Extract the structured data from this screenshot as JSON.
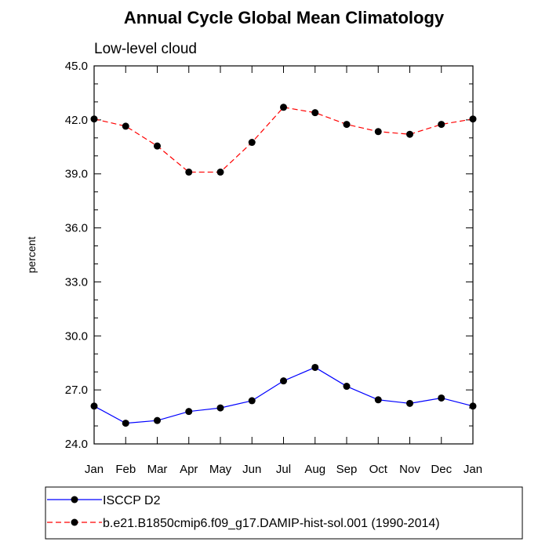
{
  "chart_data": {
    "type": "line",
    "title": "Annual Cycle Global Mean Climatology",
    "subtitle": "Low-level cloud",
    "xlabel": "",
    "ylabel": "percent",
    "categories": [
      "Jan",
      "Feb",
      "Mar",
      "Apr",
      "May",
      "Jun",
      "Jul",
      "Aug",
      "Sep",
      "Oct",
      "Nov",
      "Dec",
      "Jan"
    ],
    "ylim": [
      24.0,
      45.0
    ],
    "yticks": [
      "24.0",
      "27.0",
      "30.0",
      "33.0",
      "36.0",
      "39.0",
      "42.0",
      "45.0"
    ],
    "grid": false,
    "legend_position": "bottom",
    "series": [
      {
        "name": "ISCCP D2",
        "color": "#0000ff",
        "line_style": "solid",
        "marker": "filled-circle",
        "values": [
          26.1,
          25.15,
          25.3,
          25.8,
          26.0,
          26.4,
          27.5,
          28.25,
          27.2,
          26.45,
          26.25,
          26.55,
          26.1
        ]
      },
      {
        "name": "b.e21.B1850cmip6.f09_g17.DAMIP-hist-sol.001 (1990-2014)",
        "color": "#ff0000",
        "line_style": "dashed",
        "marker": "filled-circle",
        "values": [
          42.05,
          41.65,
          40.55,
          39.1,
          39.1,
          40.75,
          42.7,
          42.4,
          41.75,
          41.35,
          41.2,
          41.75,
          42.05
        ]
      }
    ]
  }
}
